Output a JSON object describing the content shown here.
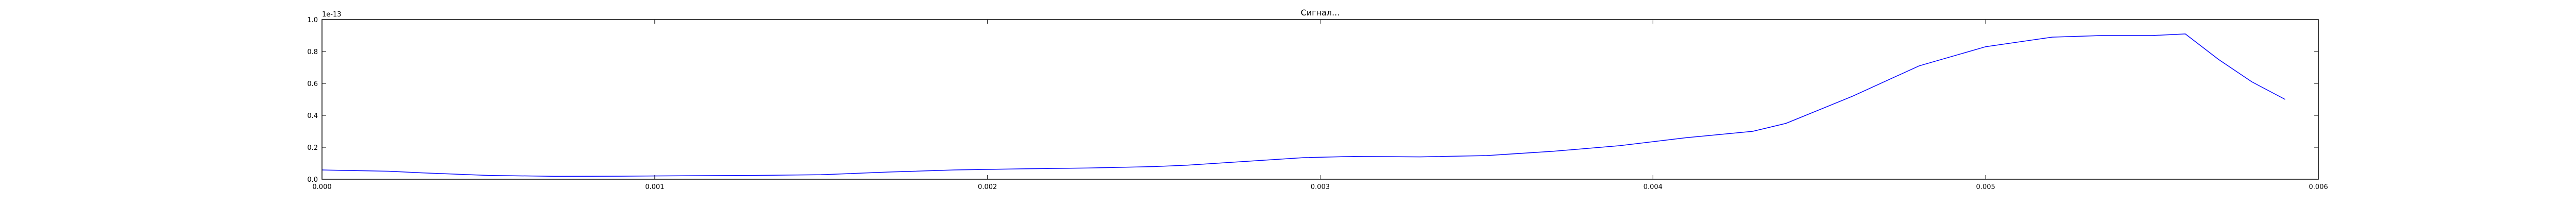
{
  "chart_data": {
    "type": "line",
    "title": "Сигнал...",
    "xlabel": "",
    "ylabel": "",
    "y_multiplier": "1e-13",
    "xlim": [
      0.0,
      0.006
    ],
    "ylim": [
      0.0,
      1.0
    ],
    "grid": false,
    "xticks": [
      "0.000",
      "0.001",
      "0.002",
      "0.003",
      "0.004",
      "0.005",
      "0.006"
    ],
    "yticks": [
      "0.0",
      "0.2",
      "0.4",
      "0.6",
      "0.8",
      "1.0"
    ],
    "series": [
      {
        "color": "#0000ff",
        "x": [
          0.0,
          0.0002,
          0.0003,
          0.0005,
          0.0007,
          0.0009,
          0.0011,
          0.0013,
          0.0015,
          0.0017,
          0.0019,
          0.0021,
          0.0023,
          0.0025,
          0.0026,
          0.0028,
          0.00295,
          0.0031,
          0.0033,
          0.0035,
          0.0037,
          0.0039,
          0.0041,
          0.0043,
          0.0044,
          0.0046,
          0.0048,
          0.005,
          0.0052,
          0.00535,
          0.0055,
          0.0056,
          0.0057,
          0.0058,
          0.0059
        ],
        "y": [
          0.058,
          0.05,
          0.04,
          0.024,
          0.018,
          0.019,
          0.022,
          0.024,
          0.028,
          0.045,
          0.058,
          0.065,
          0.07,
          0.079,
          0.088,
          0.115,
          0.135,
          0.143,
          0.14,
          0.148,
          0.175,
          0.21,
          0.26,
          0.3,
          0.35,
          0.52,
          0.71,
          0.83,
          0.89,
          0.9,
          0.9,
          0.91,
          0.75,
          0.61,
          0.5
        ]
      }
    ]
  }
}
